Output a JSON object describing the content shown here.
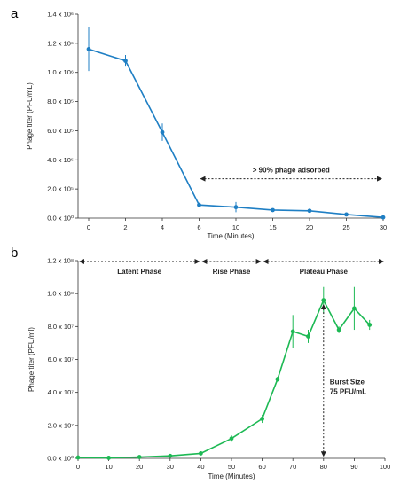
{
  "chart_data": [
    {
      "panel_label": "a",
      "type": "line",
      "color": "#1f7fc4",
      "xlabel": "Time (Minutes)",
      "ylabel": "Phage titer (PFU/mL)",
      "x_ticks": [
        "0",
        "2",
        "4",
        "6",
        "10",
        "15",
        "20",
        "25",
        "30"
      ],
      "y_ticks": [
        "0.0 x 10⁰",
        "2.0 x 10⁵",
        "4.0 x 10⁵",
        "6.0 x 10⁵",
        "8.0 x 10⁵",
        "1.0 x 10⁶",
        "1.2 x 10⁶",
        "1.4 x 10⁶"
      ],
      "ylim": [
        0,
        1400000
      ],
      "series": [
        {
          "x": [
            "0",
            "2",
            "4",
            "6",
            "10",
            "15",
            "20",
            "25",
            "30"
          ],
          "y": [
            1160000,
            1080000,
            590000,
            90000,
            75000,
            55000,
            50000,
            25000,
            5000
          ],
          "err": [
            150000,
            40000,
            60000,
            15000,
            35000,
            10000,
            10000,
            8000,
            5000
          ]
        }
      ],
      "annotations": [
        {
          "text": "> 90%  phage adsorbed",
          "x_from": "6",
          "x_to": "30",
          "y": 270000
        }
      ]
    },
    {
      "panel_label": "b",
      "type": "line",
      "color": "#1db954",
      "xlabel": "Time (Minutes)",
      "ylabel": "Phage titer (PFU/ml)",
      "x_ticks": [
        "0",
        "10",
        "20",
        "30",
        "40",
        "50",
        "60",
        "70",
        "80",
        "90",
        "100"
      ],
      "y_ticks": [
        "0.0 x 10⁰",
        "2.0 x 10⁷",
        "4.0 x 10⁷",
        "6.0 x 10⁷",
        "8.0 x 10⁷",
        "1.0 x 10⁸",
        "1.2 x 10⁸"
      ],
      "xlim": [
        0,
        100
      ],
      "ylim": [
        0,
        120000000
      ],
      "series": [
        {
          "x": [
            0,
            10,
            20,
            30,
            40,
            50,
            60,
            65,
            70,
            75,
            80,
            85,
            90,
            95
          ],
          "y": [
            500000,
            300000,
            800000,
            1500000,
            3000000,
            12000000,
            24000000,
            48000000,
            77000000,
            74000000,
            96000000,
            78000000,
            91000000,
            81000000
          ],
          "err": [
            1000000,
            1000000,
            1000000,
            1000000,
            1000000,
            2000000,
            2500000,
            1500000,
            10000000,
            4000000,
            8000000,
            2000000,
            13000000,
            3000000
          ]
        }
      ],
      "phases": [
        {
          "label": "Latent Phase",
          "x_from": 0,
          "x_to": 40
        },
        {
          "label": "Rise Phase",
          "x_from": 40,
          "x_to": 60
        },
        {
          "label": "Plateau Phase",
          "x_from": 60,
          "x_to": 100
        }
      ],
      "burst_annotation": {
        "line1": "Burst Size",
        "line2": "75 PFU/mL",
        "x": 80,
        "y_from": 1500000,
        "y_to": 93000000
      }
    }
  ]
}
